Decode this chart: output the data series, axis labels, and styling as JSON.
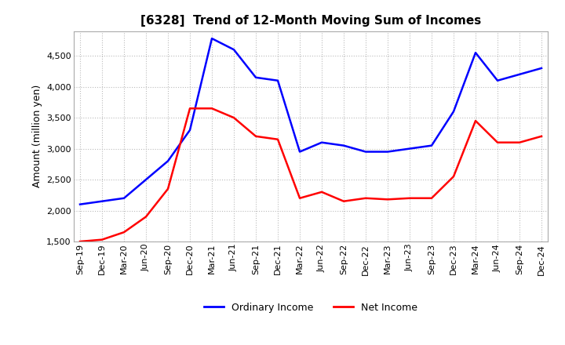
{
  "title": "[6328]  Trend of 12-Month Moving Sum of Incomes",
  "ylabel": "Amount (million yen)",
  "ylim": [
    1500,
    4900
  ],
  "yticks": [
    1500,
    2000,
    2500,
    3000,
    3500,
    4000,
    4500
  ],
  "ordinary_income_color": "#0000FF",
  "net_income_color": "#FF0000",
  "background_color": "#FFFFFF",
  "grid_color": "#BBBBBB",
  "dates": [
    "Sep-19",
    "Dec-19",
    "Mar-20",
    "Jun-20",
    "Sep-20",
    "Dec-20",
    "Mar-21",
    "Jun-21",
    "Sep-21",
    "Dec-21",
    "Mar-22",
    "Jun-22",
    "Sep-22",
    "Dec-22",
    "Mar-23",
    "Jun-23",
    "Sep-23",
    "Dec-23",
    "Mar-24",
    "Jun-24",
    "Sep-24",
    "Dec-24"
  ],
  "ordinary_income": [
    2100,
    2150,
    2200,
    2500,
    2800,
    3300,
    4780,
    4600,
    4150,
    4100,
    2950,
    3100,
    3050,
    2950,
    2950,
    3000,
    3050,
    3600,
    4550,
    4100,
    4200,
    4300
  ],
  "net_income": [
    1500,
    1530,
    1650,
    1900,
    2350,
    3650,
    3650,
    3500,
    3200,
    3150,
    2200,
    2300,
    2150,
    2200,
    2180,
    2200,
    2200,
    2550,
    3450,
    3100,
    3100,
    3200
  ],
  "legend_labels": [
    "Ordinary Income",
    "Net Income"
  ],
  "title_fontsize": 11,
  "axis_fontsize": 9,
  "tick_fontsize": 8
}
